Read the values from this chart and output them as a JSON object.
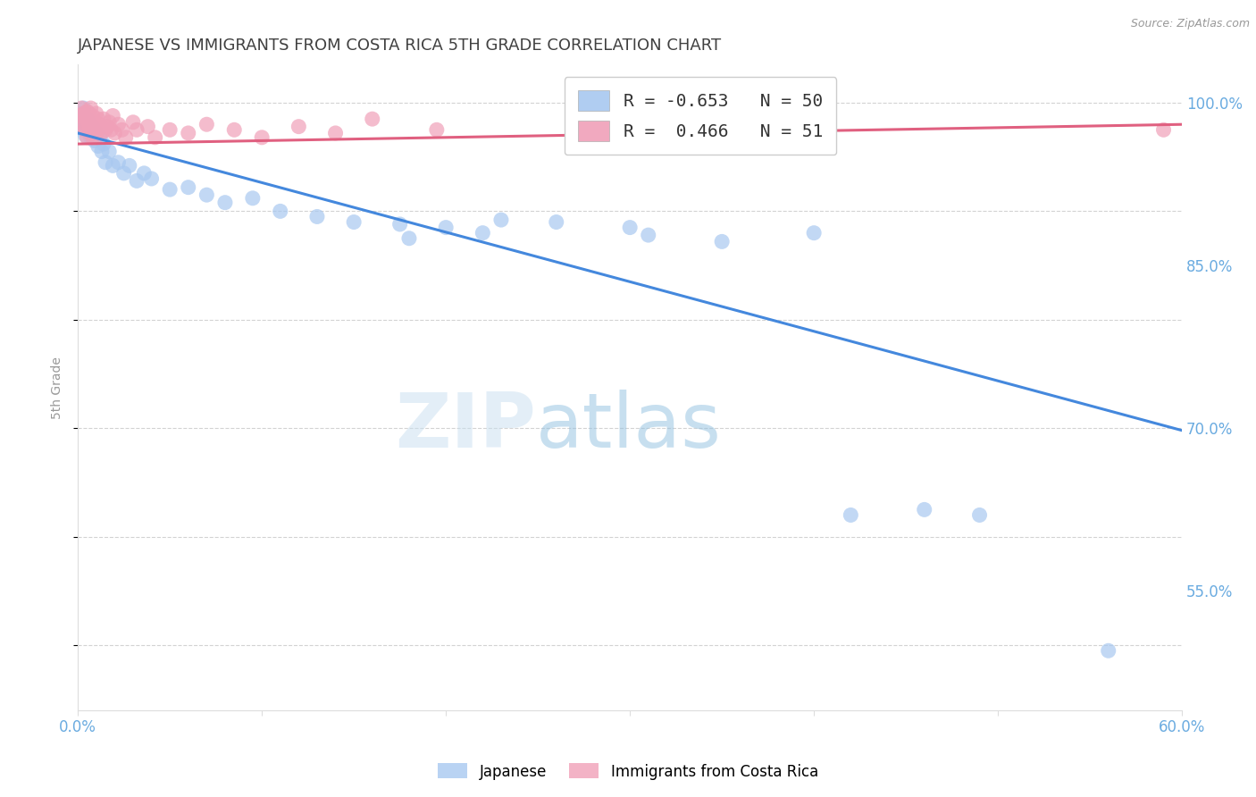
{
  "title": "JAPANESE VS IMMIGRANTS FROM COSTA RICA 5TH GRADE CORRELATION CHART",
  "source": "Source: ZipAtlas.com",
  "ylabel": "5th Grade",
  "xlim": [
    0.0,
    0.6
  ],
  "ylim": [
    0.44,
    1.035
  ],
  "xticks": [
    0.0,
    0.1,
    0.2,
    0.3,
    0.4,
    0.5,
    0.6
  ],
  "xticklabels": [
    "0.0%",
    "",
    "",
    "",
    "",
    "",
    "60.0%"
  ],
  "yticks_right": [
    0.55,
    0.7,
    0.85,
    1.0
  ],
  "yticklabels_right": [
    "55.0%",
    "70.0%",
    "85.0%",
    "100.0%"
  ],
  "bg_color": "#ffffff",
  "grid_color": "#c8c8c8",
  "watermark_zip": "ZIP",
  "watermark_atlas": "atlas",
  "legend_r1": "R = -0.653",
  "legend_n1": "N = 50",
  "legend_r2": "R =  0.466",
  "legend_n2": "N = 51",
  "blue_color": "#a8c8f0",
  "pink_color": "#f0a0b8",
  "blue_line_color": "#4488dd",
  "pink_line_color": "#e06080",
  "title_color": "#404040",
  "axis_label_color": "#6aabe0",
  "japanese_x": [
    0.001,
    0.002,
    0.003,
    0.003,
    0.004,
    0.004,
    0.005,
    0.005,
    0.006,
    0.006,
    0.007,
    0.007,
    0.008,
    0.009,
    0.01,
    0.011,
    0.012,
    0.013,
    0.014,
    0.015,
    0.017,
    0.019,
    0.022,
    0.025,
    0.028,
    0.032,
    0.036,
    0.04,
    0.05,
    0.06,
    0.07,
    0.08,
    0.095,
    0.11,
    0.13,
    0.15,
    0.175,
    0.2,
    0.23,
    0.26,
    0.18,
    0.22,
    0.3,
    0.31,
    0.35,
    0.4,
    0.42,
    0.46,
    0.49,
    0.56
  ],
  "japanese_y": [
    0.99,
    0.985,
    0.975,
    0.995,
    0.98,
    0.97,
    0.975,
    0.985,
    0.972,
    0.982,
    0.975,
    0.968,
    0.978,
    0.965,
    0.972,
    0.96,
    0.968,
    0.955,
    0.962,
    0.945,
    0.955,
    0.942,
    0.945,
    0.935,
    0.942,
    0.928,
    0.935,
    0.93,
    0.92,
    0.922,
    0.915,
    0.908,
    0.912,
    0.9,
    0.895,
    0.89,
    0.888,
    0.885,
    0.892,
    0.89,
    0.875,
    0.88,
    0.885,
    0.878,
    0.872,
    0.88,
    0.62,
    0.625,
    0.62,
    0.495
  ],
  "costarica_x": [
    0.001,
    0.002,
    0.002,
    0.003,
    0.003,
    0.004,
    0.004,
    0.005,
    0.005,
    0.006,
    0.006,
    0.006,
    0.007,
    0.007,
    0.007,
    0.008,
    0.008,
    0.008,
    0.009,
    0.009,
    0.01,
    0.01,
    0.01,
    0.011,
    0.011,
    0.012,
    0.013,
    0.014,
    0.015,
    0.016,
    0.017,
    0.018,
    0.019,
    0.02,
    0.022,
    0.024,
    0.026,
    0.03,
    0.032,
    0.038,
    0.042,
    0.05,
    0.06,
    0.07,
    0.085,
    0.1,
    0.12,
    0.14,
    0.16,
    0.195,
    0.59
  ],
  "costarica_y": [
    0.988,
    0.982,
    0.995,
    0.978,
    0.99,
    0.985,
    0.975,
    0.992,
    0.968,
    0.98,
    0.99,
    0.975,
    0.985,
    0.972,
    0.995,
    0.978,
    0.988,
    0.968,
    0.982,
    0.975,
    0.99,
    0.978,
    0.968,
    0.985,
    0.975,
    0.98,
    0.972,
    0.985,
    0.975,
    0.978,
    0.982,
    0.975,
    0.988,
    0.972,
    0.98,
    0.975,
    0.968,
    0.982,
    0.975,
    0.978,
    0.968,
    0.975,
    0.972,
    0.98,
    0.975,
    0.968,
    0.978,
    0.972,
    0.985,
    0.975,
    0.975
  ],
  "blue_line_x0": 0.0,
  "blue_line_y0": 0.972,
  "blue_line_x1": 0.6,
  "blue_line_y1": 0.698,
  "pink_line_x0": 0.0,
  "pink_line_y0": 0.962,
  "pink_line_x1": 0.6,
  "pink_line_y1": 0.98
}
